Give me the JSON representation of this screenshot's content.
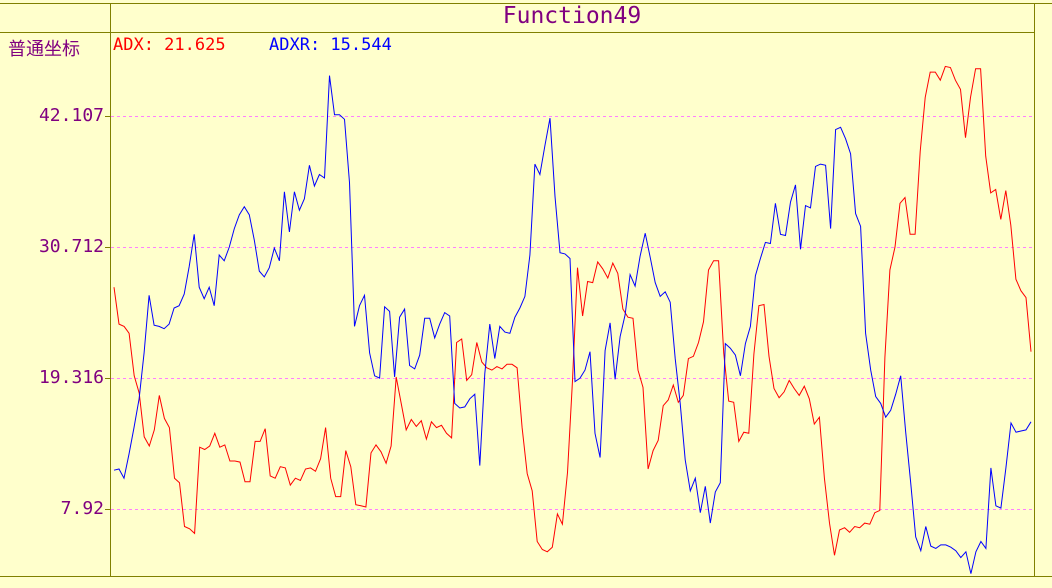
{
  "chart_data": {
    "type": "line",
    "title": "Function49",
    "coordinate_label": "普通坐标",
    "yticks": [
      "42.107",
      "30.712",
      "19.316",
      "7.92"
    ],
    "ytick_values": [
      42.107,
      30.712,
      19.316,
      7.92
    ],
    "ylim": [
      2.1,
      49.3
    ],
    "grid": true,
    "colors": {
      "background": "#ffffcc",
      "frame": "#808000",
      "grid": "#ff80ff",
      "label": "#800080"
    },
    "series": [
      {
        "name": "ADX",
        "label": "ADX: 21.625",
        "color": "#ff0000",
        "values": [
          27.2,
          24.0,
          23.8,
          23.2,
          19.5,
          18.0,
          14.2,
          13.4,
          14.8,
          17.8,
          15.8,
          15.0,
          10.6,
          10.2,
          6.4,
          6.2,
          5.8,
          13.3,
          13.1,
          13.4,
          14.5,
          13.3,
          13.5,
          12.1,
          12.1,
          12.0,
          10.3,
          10.3,
          13.8,
          13.8,
          14.9,
          10.8,
          10.6,
          11.6,
          11.5,
          10.0,
          10.6,
          10.4,
          11.4,
          11.5,
          11.2,
          12.3,
          15.0,
          10.6,
          9.0,
          9.0,
          13.0,
          11.6,
          8.3,
          8.2,
          8.1,
          12.8,
          13.5,
          12.9,
          11.9,
          13.4,
          19.4,
          17.1,
          14.8,
          15.7,
          15.1,
          15.6,
          14.0,
          15.5,
          15.0,
          15.2,
          14.5,
          14.1,
          22.4,
          22.7,
          19.1,
          19.6,
          22.4,
          20.7,
          20.2,
          20.0,
          20.3,
          20.1,
          20.5,
          20.5,
          20.2,
          15.0,
          11.0,
          9.5,
          5.1,
          4.4,
          4.2,
          4.6,
          7.5,
          6.6,
          11.1,
          19.1,
          28.9,
          24.7,
          27.7,
          27.6,
          29.4,
          28.8,
          28.0,
          29.3,
          28.4,
          25.3,
          24.6,
          24.5,
          20.0,
          18.5,
          11.4,
          13.0,
          13.9,
          16.9,
          17.4,
          18.7,
          17.2,
          17.8,
          21.0,
          21.2,
          22.4,
          24.2,
          28.7,
          29.5,
          29.5,
          21.5,
          17.3,
          17.2,
          13.8,
          14.6,
          14.5,
          21.4,
          25.6,
          25.7,
          21.2,
          18.4,
          17.6,
          18.1,
          19.1,
          18.4,
          17.8,
          18.6,
          17.5,
          15.3,
          15.9,
          10.6,
          6.7,
          3.9,
          6.1,
          6.3,
          5.9,
          6.4,
          6.3,
          6.7,
          6.6,
          7.6,
          7.8,
          21.1,
          28.7,
          30.7,
          34.5,
          35.0,
          31.8,
          31.8,
          39.0,
          43.7,
          45.9,
          45.9,
          45.2,
          46.4,
          46.3,
          45.2,
          44.4,
          40.2,
          43.7,
          46.2,
          46.2,
          38.6,
          35.4,
          35.7,
          33.1,
          35.6,
          32.6,
          27.9,
          26.9,
          26.3,
          21.6
        ]
      },
      {
        "name": "ADXR",
        "label": "ADXR: 15.544",
        "color": "#0000ff",
        "values": [
          11.3,
          11.4,
          10.6,
          12.7,
          15.0,
          17.5,
          21.5,
          26.5,
          23.9,
          23.8,
          23.6,
          24.0,
          25.4,
          25.6,
          26.6,
          29.0,
          31.8,
          27.2,
          26.2,
          27.2,
          25.6,
          30.0,
          29.5,
          30.7,
          32.3,
          33.5,
          34.2,
          33.5,
          31.3,
          28.6,
          28.1,
          28.9,
          30.6,
          29.5,
          35.5,
          32.0,
          35.5,
          33.9,
          34.9,
          37.8,
          36.0,
          37.0,
          36.7,
          45.6,
          42.2,
          42.2,
          41.8,
          36.3,
          23.8,
          25.6,
          26.5,
          21.5,
          19.5,
          19.3,
          25.5,
          25.1,
          19.4,
          24.6,
          25.3,
          20.4,
          20.1,
          21.3,
          24.5,
          24.5,
          22.8,
          24.0,
          25.0,
          24.7,
          17.1,
          16.7,
          16.8,
          17.5,
          17.9,
          11.7,
          19.7,
          24.0,
          21.0,
          23.8,
          23.3,
          23.2,
          24.6,
          25.4,
          26.4,
          30.0,
          37.9,
          37.0,
          39.5,
          41.9,
          35.1,
          30.2,
          30.1,
          29.7,
          19.0,
          19.3,
          20.0,
          21.6,
          14.5,
          12.4,
          21.7,
          24.1,
          19.2,
          22.9,
          24.8,
          28.3,
          27.3,
          29.9,
          31.9,
          29.8,
          27.6,
          26.4,
          26.8,
          25.9,
          21.0,
          17.1,
          12.2,
          9.5,
          10.6,
          7.6,
          9.9,
          6.7,
          9.4,
          10.2,
          22.3,
          21.9,
          21.3,
          19.5,
          22.3,
          23.8,
          28.2,
          29.7,
          31.1,
          31.0,
          34.5,
          31.8,
          31.7,
          34.6,
          36.1,
          30.5,
          34.3,
          34.1,
          37.7,
          37.9,
          37.8,
          32.3,
          40.9,
          41.1,
          40.1,
          38.8,
          33.6,
          32.5,
          23.2,
          20.0,
          17.7,
          17.1,
          15.9,
          16.5,
          17.9,
          19.5,
          14.6,
          10.2,
          5.5,
          4.3,
          6.4,
          4.7,
          4.5,
          4.8,
          4.8,
          4.6,
          4.3,
          3.7,
          4.2,
          2.3,
          4.2,
          5.1,
          4.5,
          11.5,
          8.2,
          8.0,
          11.5,
          15.4,
          14.6,
          14.7,
          14.8,
          15.5
        ]
      }
    ]
  }
}
